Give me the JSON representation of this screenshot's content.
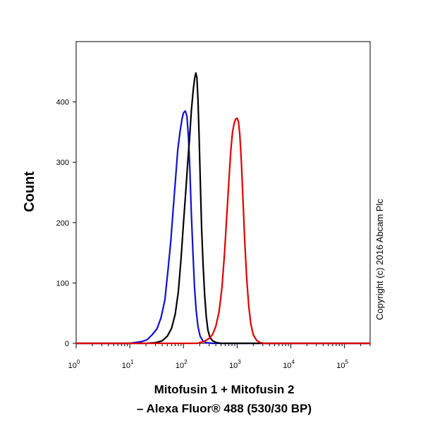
{
  "chart_data": {
    "type": "line",
    "title": "",
    "xlabel_line1": "Mitofusin 1 + Mitofusin 2",
    "xlabel_line2": "– Alexa Fluor® 488 (530/30 BP)",
    "ylabel": "Count",
    "annotation": "Copyright (c) 2016 Abcam Plc",
    "x_scale": "log",
    "xlim": [
      1,
      300000
    ],
    "ylim": [
      0,
      500
    ],
    "y_ticks": [
      0,
      100,
      200,
      300,
      400
    ],
    "x_tick_bases": [
      "10",
      "10",
      "10",
      "10",
      "10",
      "10"
    ],
    "x_tick_exponents": [
      "0",
      "1",
      "2",
      "3",
      "4",
      "5"
    ],
    "x_tick_values": [
      1,
      10,
      100,
      1000,
      10000,
      100000
    ],
    "grid": false,
    "legend": "none",
    "series": [
      {
        "color": "#1010d0",
        "points": [
          [
            1,
            0
          ],
          [
            10,
            0
          ],
          [
            14,
            2
          ],
          [
            17,
            3
          ],
          [
            21,
            6
          ],
          [
            26,
            14
          ],
          [
            32,
            24
          ],
          [
            38,
            42
          ],
          [
            45,
            72
          ],
          [
            52,
            125
          ],
          [
            58,
            170
          ],
          [
            64,
            220
          ],
          [
            70,
            265
          ],
          [
            78,
            320
          ],
          [
            86,
            350
          ],
          [
            94,
            372
          ],
          [
            100,
            382
          ],
          [
            108,
            385
          ],
          [
            116,
            376
          ],
          [
            124,
            340
          ],
          [
            132,
            285
          ],
          [
            140,
            215
          ],
          [
            150,
            150
          ],
          [
            160,
            95
          ],
          [
            172,
            55
          ],
          [
            186,
            28
          ],
          [
            204,
            12
          ],
          [
            230,
            4
          ],
          [
            270,
            1
          ],
          [
            350,
            0
          ],
          [
            300000,
            0
          ]
        ]
      },
      {
        "color": "#000000",
        "points": [
          [
            1,
            0
          ],
          [
            20,
            0
          ],
          [
            30,
            1
          ],
          [
            40,
            4
          ],
          [
            50,
            12
          ],
          [
            60,
            25
          ],
          [
            70,
            48
          ],
          [
            80,
            85
          ],
          [
            90,
            140
          ],
          [
            100,
            200
          ],
          [
            110,
            250
          ],
          [
            120,
            300
          ],
          [
            130,
            340
          ],
          [
            140,
            385
          ],
          [
            152,
            420
          ],
          [
            162,
            440
          ],
          [
            170,
            448
          ],
          [
            178,
            440
          ],
          [
            186,
            405
          ],
          [
            196,
            340
          ],
          [
            206,
            265
          ],
          [
            218,
            190
          ],
          [
            232,
            130
          ],
          [
            248,
            80
          ],
          [
            265,
            45
          ],
          [
            285,
            22
          ],
          [
            310,
            10
          ],
          [
            350,
            4
          ],
          [
            420,
            1
          ],
          [
            500,
            0
          ],
          [
            300000,
            0
          ]
        ]
      },
      {
        "color": "#e00000",
        "points": [
          [
            1,
            0
          ],
          [
            180,
            0
          ],
          [
            240,
            3
          ],
          [
            300,
            8
          ],
          [
            350,
            15
          ],
          [
            400,
            28
          ],
          [
            460,
            52
          ],
          [
            520,
            92
          ],
          [
            580,
            148
          ],
          [
            640,
            210
          ],
          [
            700,
            268
          ],
          [
            760,
            318
          ],
          [
            820,
            350
          ],
          [
            880,
            365
          ],
          [
            940,
            372
          ],
          [
            1000,
            373
          ],
          [
            1060,
            367
          ],
          [
            1120,
            345
          ],
          [
            1200,
            300
          ],
          [
            1280,
            240
          ],
          [
            1380,
            170
          ],
          [
            1500,
            110
          ],
          [
            1640,
            62
          ],
          [
            1800,
            32
          ],
          [
            2000,
            14
          ],
          [
            2300,
            5
          ],
          [
            2700,
            1
          ],
          [
            3200,
            0
          ],
          [
            300000,
            0
          ]
        ]
      }
    ]
  }
}
